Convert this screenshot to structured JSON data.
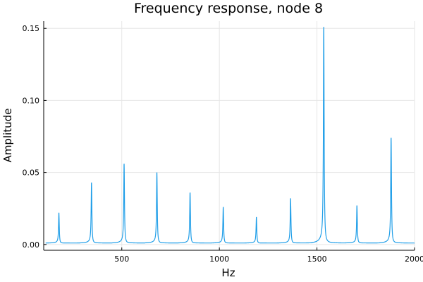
{
  "chart_data": {
    "type": "line",
    "title": "Frequency response, node 8",
    "xlabel": "Hz",
    "ylabel": "Amplitude",
    "xlim": [
      100,
      2000
    ],
    "ylim": [
      -0.004,
      0.155
    ],
    "xticks": [
      500,
      1000,
      1500,
      2000
    ],
    "xtick_labels": [
      "500",
      "1000",
      "1500",
      "2000"
    ],
    "yticks": [
      0.0,
      0.05,
      0.1,
      0.15
    ],
    "ytick_labels": [
      "0.00",
      "0.05",
      "0.10",
      "0.15"
    ],
    "grid": true,
    "series": [
      {
        "name": "",
        "color": "#1f9ee8",
        "baseline": 0.001,
        "peaks": [
          {
            "x": 178,
            "y": 0.022
          },
          {
            "x": 345,
            "y": 0.043
          },
          {
            "x": 512,
            "y": 0.056
          },
          {
            "x": 680,
            "y": 0.05
          },
          {
            "x": 850,
            "y": 0.036
          },
          {
            "x": 1020,
            "y": 0.026
          },
          {
            "x": 1190,
            "y": 0.019
          },
          {
            "x": 1365,
            "y": 0.032
          },
          {
            "x": 1535,
            "y": 0.151
          },
          {
            "x": 1705,
            "y": 0.027
          },
          {
            "x": 1880,
            "y": 0.074
          }
        ]
      }
    ]
  }
}
